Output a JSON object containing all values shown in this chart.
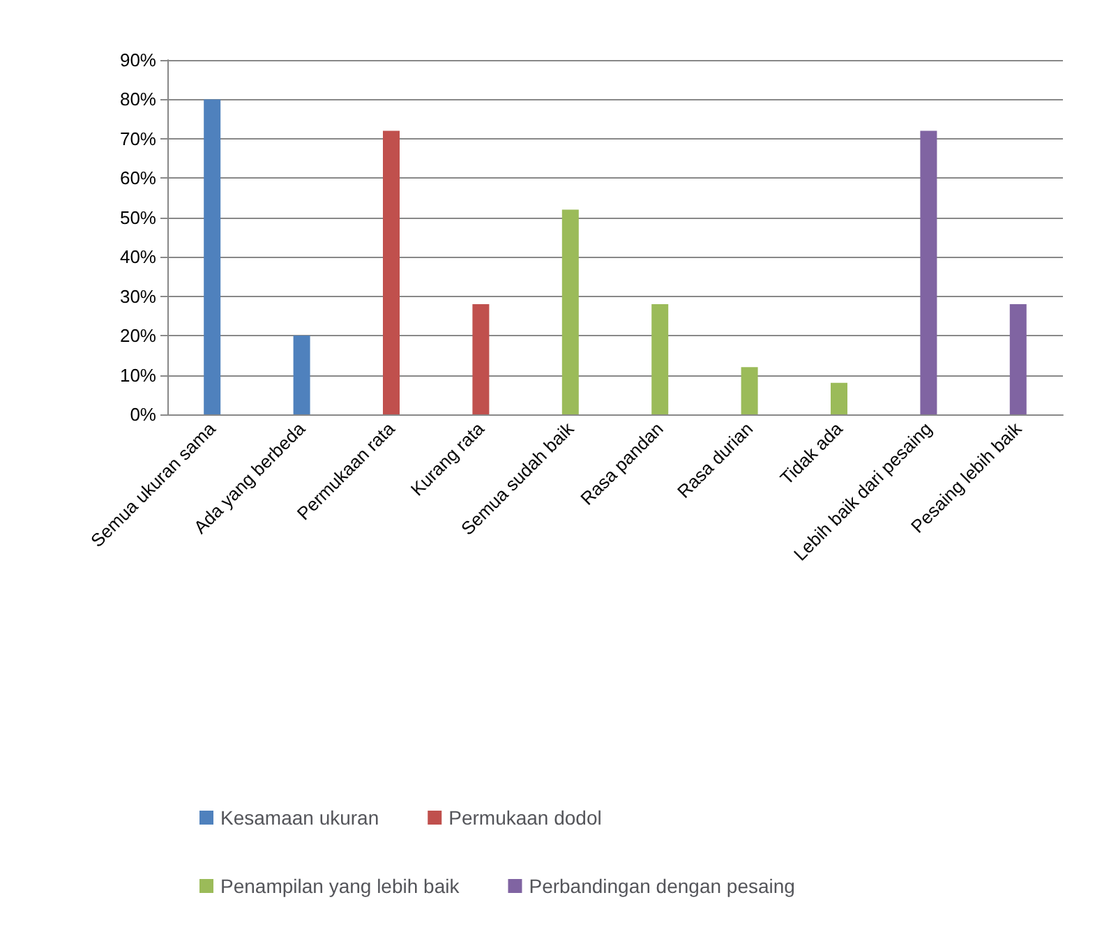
{
  "chart_data": {
    "type": "bar",
    "categories": [
      "Semua ukuran sama",
      "Ada yang berbeda",
      "Permukaan rata",
      "Kurang rata",
      "Semua sudah baik",
      "Rasa pandan",
      "Rasa durian",
      "Tidak ada",
      "Lebih baik dari pesaing",
      "Pesaing lebih baik"
    ],
    "series": [
      {
        "name": "Kesamaan ukuran",
        "color": "#4f81bd",
        "values": [
          80,
          20,
          null,
          null,
          null,
          null,
          null,
          null,
          null,
          null
        ]
      },
      {
        "name": "Permukaan dodol",
        "color": "#c0504d",
        "values": [
          null,
          null,
          72,
          28,
          null,
          null,
          null,
          null,
          null,
          null
        ]
      },
      {
        "name": "Penampilan yang lebih baik",
        "color": "#9bbb59",
        "values": [
          null,
          null,
          null,
          null,
          52,
          28,
          12,
          8,
          null,
          null
        ]
      },
      {
        "name": "Perbandingan dengan pesaing",
        "color": "#8064a2",
        "values": [
          null,
          null,
          null,
          null,
          null,
          null,
          null,
          null,
          72,
          28
        ]
      }
    ],
    "ylim": [
      0,
      90
    ],
    "yticks": [
      {
        "value": 0,
        "label": "0%"
      },
      {
        "value": 10,
        "label": "10%"
      },
      {
        "value": 20,
        "label": "20%"
      },
      {
        "value": 30,
        "label": "30%"
      },
      {
        "value": 40,
        "label": "40%"
      },
      {
        "value": 50,
        "label": "50%"
      },
      {
        "value": 60,
        "label": "60%"
      },
      {
        "value": 70,
        "label": "70%"
      },
      {
        "value": 80,
        "label": "80%"
      },
      {
        "value": 90,
        "label": "90%"
      }
    ],
    "grid": "y",
    "legend": "bottom"
  }
}
